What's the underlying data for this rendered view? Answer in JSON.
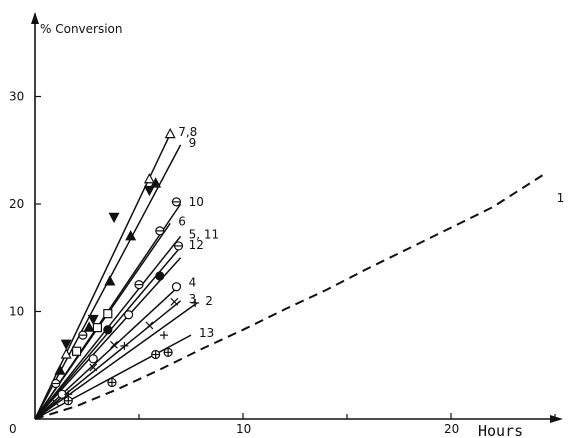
{
  "chart_data": {
    "type": "scatter",
    "title": "",
    "ylabel": "% Conversion",
    "xlabel": "Hours",
    "xlim": [
      0,
      25
    ],
    "ylim": [
      0,
      37
    ],
    "x_ticks": [
      0,
      10,
      20
    ],
    "y_ticks": [
      10,
      20,
      30
    ],
    "x_minor_ticks": [
      5,
      15,
      25
    ],
    "grid": false,
    "series": [
      {
        "name": "7,8",
        "marker": "open-triangle",
        "line": "solid",
        "fit": [
          [
            0,
            0
          ],
          [
            6.5,
            26.5
          ]
        ],
        "points": [
          [
            1.5,
            6
          ],
          [
            5.5,
            22.3
          ],
          [
            6.5,
            26.5
          ]
        ]
      },
      {
        "name": "9",
        "marker": "filled-triangle-down",
        "line": "solid",
        "fit": [
          [
            0,
            0
          ],
          [
            7,
            25.5
          ]
        ],
        "points": [
          [
            1.5,
            7
          ],
          [
            3.8,
            18.8
          ],
          [
            5.5,
            21.3
          ],
          [
            2.8,
            9.3
          ]
        ]
      },
      {
        "name": "6",
        "marker": "filled-triangle",
        "line": "solid",
        "fit": [
          [
            0,
            0
          ],
          [
            6.5,
            18.2
          ]
        ],
        "points": [
          [
            1.2,
            4.5
          ],
          [
            2.6,
            8.5
          ],
          [
            3.6,
            12.8
          ],
          [
            4.6,
            17
          ],
          [
            5.8,
            21.9
          ]
        ]
      },
      {
        "name": "10",
        "marker": "circle-bar",
        "line": "solid",
        "fit": [
          [
            0,
            0
          ],
          [
            7,
            20
          ]
        ],
        "points": [
          [
            6,
            17.5
          ],
          [
            6.8,
            20.2
          ]
        ]
      },
      {
        "name": "5, 11",
        "marker": "square",
        "line": "solid",
        "fit": [
          [
            0,
            0
          ],
          [
            7,
            17
          ]
        ],
        "points": [
          [
            2,
            6.3
          ],
          [
            3,
            8.5
          ],
          [
            3.5,
            9.8
          ]
        ]
      },
      {
        "name": "12",
        "marker": "circle-bar",
        "line": "solid",
        "fit": [
          [
            0,
            0
          ],
          [
            7,
            16
          ]
        ],
        "points": [
          [
            1,
            3.3
          ],
          [
            2.3,
            7.8
          ],
          [
            5,
            12.5
          ],
          [
            6.9,
            16.1
          ]
        ]
      },
      {
        "name": "",
        "marker": "filled-circle",
        "line": "solid",
        "fit": [
          [
            0,
            0
          ],
          [
            7,
            15
          ]
        ],
        "points": [
          [
            3.5,
            8.3
          ],
          [
            6,
            13.3
          ]
        ]
      },
      {
        "name": "4",
        "marker": "open-circle",
        "line": "solid",
        "fit": [
          [
            0,
            0
          ],
          [
            7,
            12.5
          ]
        ],
        "points": [
          [
            1.3,
            2.3
          ],
          [
            2.8,
            5.6
          ],
          [
            4.5,
            9.7
          ],
          [
            6.8,
            12.3
          ]
        ]
      },
      {
        "name": "3",
        "marker": "x",
        "line": "solid",
        "fit": [
          [
            0,
            0
          ],
          [
            7,
            11
          ]
        ],
        "points": [
          [
            1,
            1.5
          ],
          [
            2.8,
            4.8
          ],
          [
            3.8,
            6.9
          ],
          [
            5.5,
            8.7
          ],
          [
            6.7,
            10.9
          ]
        ]
      },
      {
        "name": "2",
        "marker": "plus",
        "line": "solid",
        "fit": [
          [
            0,
            0
          ],
          [
            7.8,
            10.8
          ]
        ],
        "points": [
          [
            1.6,
            2.3
          ],
          [
            4.3,
            6.8
          ],
          [
            6.2,
            7.8
          ],
          [
            7.7,
            10.8
          ]
        ]
      },
      {
        "name": "13",
        "marker": "circle-plus",
        "line": "solid",
        "fit": [
          [
            0,
            0
          ],
          [
            7.5,
            7.8
          ]
        ],
        "points": [
          [
            1.6,
            1.7
          ],
          [
            3.7,
            3.4
          ],
          [
            5.8,
            6.0
          ],
          [
            6.4,
            6.2
          ]
        ]
      },
      {
        "name": "1",
        "marker": "none",
        "line": "dashed",
        "fit": [
          [
            0,
            0
          ],
          [
            2,
            1.2
          ],
          [
            4,
            2.8
          ],
          [
            6,
            4.6
          ],
          [
            8,
            6.5
          ],
          [
            10,
            8.3
          ],
          [
            12,
            10.2
          ],
          [
            14,
            12.0
          ],
          [
            16,
            14.0
          ],
          [
            18,
            15.9
          ],
          [
            20,
            17.8
          ],
          [
            22,
            19.7
          ],
          [
            24.5,
            22.8
          ]
        ],
        "points": []
      }
    ]
  }
}
